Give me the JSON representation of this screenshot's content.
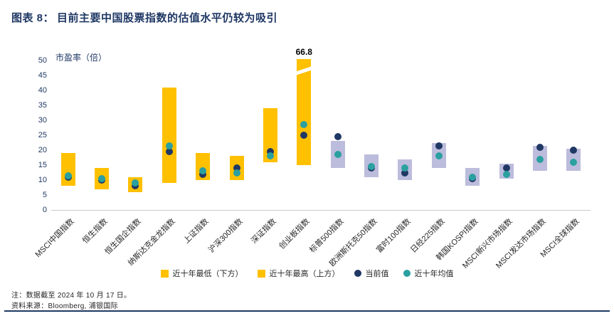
{
  "header": {
    "prefix": "图表 8：",
    "title": "目前主要中国股票指数的估值水平仍较为吸引"
  },
  "footer": {
    "note": "注：数据截至 2024 年 10 月 17 日。",
    "source": "资料来源：Bloomberg, 浦银国际"
  },
  "chart_data": {
    "type": "range-bar",
    "ylabel": "市盈率（倍）",
    "ylim": [
      0,
      50
    ],
    "yticks": [
      0,
      5,
      10,
      15,
      20,
      25,
      30,
      35,
      40,
      45,
      50
    ],
    "break_value": 46.5,
    "grid": false,
    "legend_position": "bottom",
    "legend": [
      {
        "label": "近十年最低（下方）",
        "marker": "square",
        "color": "#FFC000"
      },
      {
        "label": "近十年最高（上方）",
        "marker": "square",
        "color": "#FFC000"
      },
      {
        "label": "当前值",
        "marker": "circle",
        "color": "#1F3864"
      },
      {
        "label": "近十年均值",
        "marker": "circle",
        "color": "#2AA0A0"
      }
    ],
    "colors": {
      "china_bar": "#FFC000",
      "intl_bar": "#BCBCDC",
      "current": "#1F3864",
      "avg": "#2AA0A0"
    },
    "items": [
      {
        "label": "MSCI中国指数",
        "group": "china",
        "low": 8,
        "high": 19,
        "current": 11,
        "avg": 11.5
      },
      {
        "label": "恒生指数",
        "group": "china",
        "low": 7,
        "high": 14,
        "current": 10,
        "avg": 10.5
      },
      {
        "label": "恒生国企指数",
        "group": "china",
        "low": 6,
        "high": 11,
        "current": 8,
        "avg": 9
      },
      {
        "label": "纳斯达克金龙指数",
        "group": "china",
        "low": 9,
        "high": 41,
        "current": 19.5,
        "avg": 21.5
      },
      {
        "label": "上证指数",
        "group": "china",
        "low": 10,
        "high": 19,
        "current": 12,
        "avg": 13
      },
      {
        "label": "沪深300指数",
        "group": "china",
        "low": 10,
        "high": 18,
        "current": 14,
        "avg": 12.5
      },
      {
        "label": "深证指数",
        "group": "china",
        "low": 16,
        "high": 34,
        "current": 19.5,
        "avg": 18
      },
      {
        "label": "创业板指数",
        "group": "china",
        "low": 15,
        "high": 66.8,
        "current": 25,
        "avg": 28.5,
        "clipped": true,
        "high_label": "66.8"
      },
      {
        "label": "标普500指数",
        "group": "intl",
        "low": 14,
        "high": 23,
        "current": 24.5,
        "avg": 18.5
      },
      {
        "label": "欧洲斯托克50指数",
        "group": "intl",
        "low": 11,
        "high": 18.5,
        "current": 14,
        "avg": 14.5
      },
      {
        "label": "富时100指数",
        "group": "intl",
        "low": 10,
        "high": 17,
        "current": 12.5,
        "avg": 14
      },
      {
        "label": "日经225指数",
        "group": "intl",
        "low": 14,
        "high": 22.5,
        "current": 21.5,
        "avg": 18
      },
      {
        "label": "韩国KOSPI指数",
        "group": "intl",
        "low": 8,
        "high": 14,
        "current": 10.5,
        "avg": 11
      },
      {
        "label": "MSCI新兴市场指数",
        "group": "intl",
        "low": 10.5,
        "high": 15.5,
        "current": 14,
        "avg": 12
      },
      {
        "label": "MSCI发达市场指数",
        "group": "intl",
        "low": 13,
        "high": 21.5,
        "current": 21,
        "avg": 17
      },
      {
        "label": "MSCI全球指数",
        "group": "intl",
        "low": 13,
        "high": 20.5,
        "current": 20,
        "avg": 16
      }
    ]
  }
}
